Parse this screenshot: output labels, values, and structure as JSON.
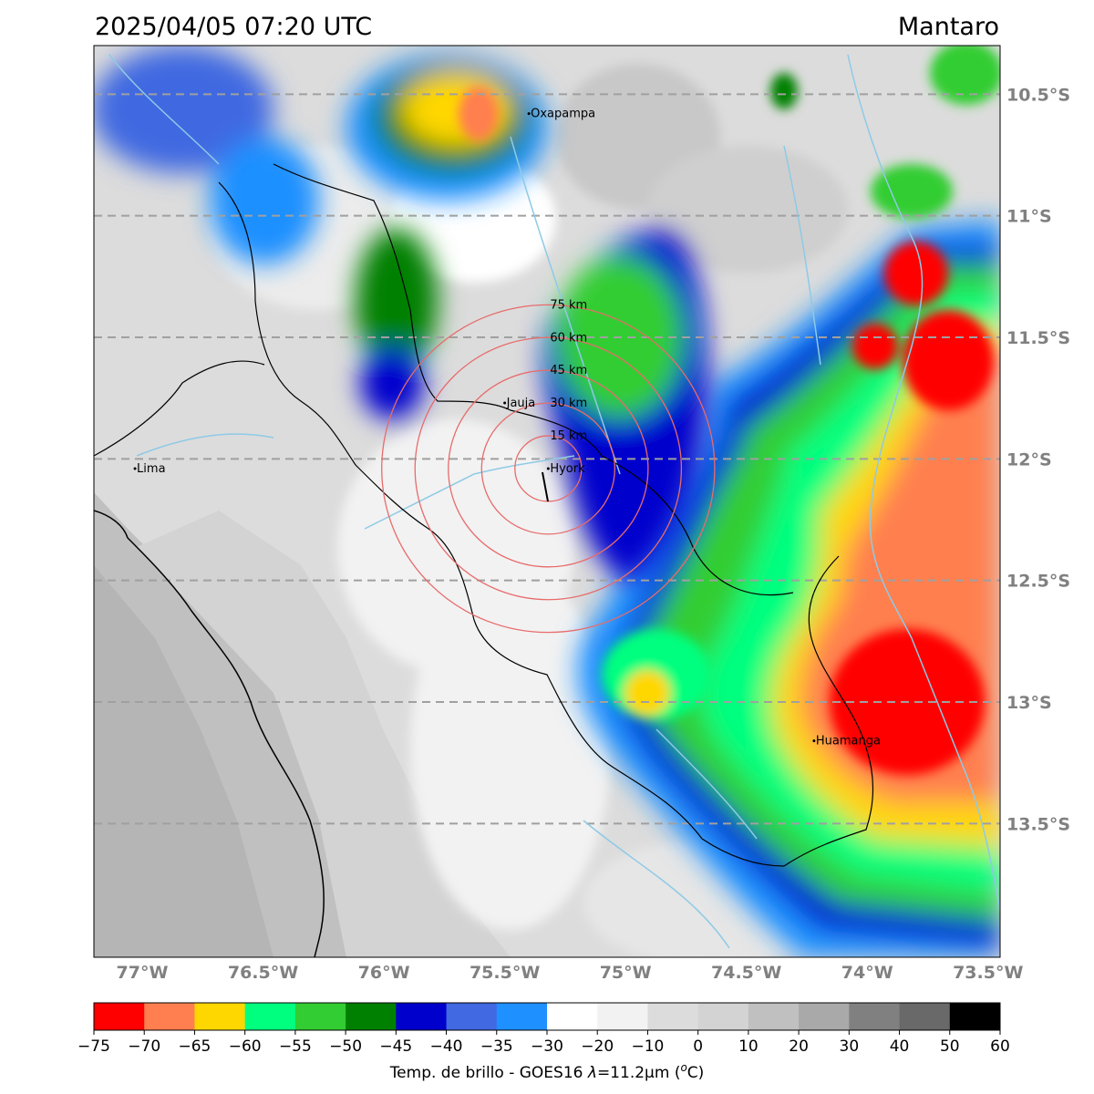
{
  "header": {
    "timestamp": "2025/04/05 07:20 UTC",
    "region": "Mantaro"
  },
  "map": {
    "lon_range": [
      -77.2,
      -73.45
    ],
    "lat_range": [
      -14.05,
      -10.3
    ],
    "lat_gridlines": [
      {
        "value": -10.5,
        "label": "10.5°S"
      },
      {
        "value": -11.0,
        "label": "11°S"
      },
      {
        "value": -11.5,
        "label": "11.5°S"
      },
      {
        "value": -12.0,
        "label": "12°S"
      },
      {
        "value": -12.5,
        "label": "12.5°S"
      },
      {
        "value": -13.0,
        "label": "13°S"
      },
      {
        "value": -13.5,
        "label": "13.5°S"
      }
    ],
    "lon_ticks": [
      {
        "value": -77.0,
        "label": "77°W"
      },
      {
        "value": -76.5,
        "label": "76.5°W"
      },
      {
        "value": -76.0,
        "label": "76°W"
      },
      {
        "value": -75.5,
        "label": "75.5°W"
      },
      {
        "value": -75.0,
        "label": "75°W"
      },
      {
        "value": -74.5,
        "label": "74.5°W"
      },
      {
        "value": -74.0,
        "label": "74°W"
      },
      {
        "value": -73.5,
        "label": "73.5°W"
      }
    ],
    "cities": [
      {
        "name": "Oxapampa",
        "lon": -75.4,
        "lat": -10.58
      },
      {
        "name": "Jauja",
        "lon": -75.5,
        "lat": -11.77
      },
      {
        "name": "Lima",
        "lon": -77.03,
        "lat": -12.04
      },
      {
        "name": "Hyork",
        "lon": -75.32,
        "lat": -12.04
      },
      {
        "name": "Huamanga",
        "lon": -74.22,
        "lat": -13.16
      }
    ],
    "radar": {
      "center_lon": -75.32,
      "center_lat": -12.04,
      "rings": [
        {
          "km": 15,
          "label": "15 km"
        },
        {
          "km": 30,
          "label": "30 km"
        },
        {
          "km": 45,
          "label": "45 km"
        },
        {
          "km": 60,
          "label": "60 km"
        },
        {
          "km": 75,
          "label": "75 km"
        }
      ],
      "ring_color": "#e86b6b"
    },
    "gridline_color": "#a0a0a0",
    "river_color": "#8ecae6",
    "border_color": "#000000"
  },
  "colorbar": {
    "segments": [
      {
        "from": -75,
        "to": -70,
        "color": "#ff0000"
      },
      {
        "from": -70,
        "to": -65,
        "color": "#ff7f50"
      },
      {
        "from": -65,
        "to": -60,
        "color": "#ffd700"
      },
      {
        "from": -60,
        "to": -55,
        "color": "#00ff7f"
      },
      {
        "from": -55,
        "to": -50,
        "color": "#32cd32"
      },
      {
        "from": -50,
        "to": -45,
        "color": "#008000"
      },
      {
        "from": -45,
        "to": -40,
        "color": "#0000cd"
      },
      {
        "from": -40,
        "to": -35,
        "color": "#4169e1"
      },
      {
        "from": -35,
        "to": -30,
        "color": "#1e90ff"
      },
      {
        "from": -30,
        "to": -20,
        "color": "#ffffff"
      },
      {
        "from": -20,
        "to": -10,
        "color": "#f2f2f2"
      },
      {
        "from": -10,
        "to": 0,
        "color": "#dcdcdc"
      },
      {
        "from": 0,
        "to": 10,
        "color": "#d3d3d3"
      },
      {
        "from": 10,
        "to": 20,
        "color": "#c0c0c0"
      },
      {
        "from": 20,
        "to": 30,
        "color": "#a9a9a9"
      },
      {
        "from": 30,
        "to": 40,
        "color": "#808080"
      },
      {
        "from": 40,
        "to": 50,
        "color": "#696969"
      },
      {
        "from": 50,
        "to": 60,
        "color": "#000000"
      }
    ],
    "tick_labels": [
      "−75",
      "−70",
      "−65",
      "−60",
      "−55",
      "−50",
      "−45",
      "−40",
      "−35",
      "−30",
      "−20",
      "−10",
      "0",
      "10",
      "20",
      "30",
      "40",
      "50",
      "60"
    ],
    "label_prefix": "Temp. de brillo - GOES16 ",
    "label_lambda": "λ",
    "label_suffix": "=11.2μm (",
    "label_unit_o": "o",
    "label_unit_end": "C)"
  }
}
